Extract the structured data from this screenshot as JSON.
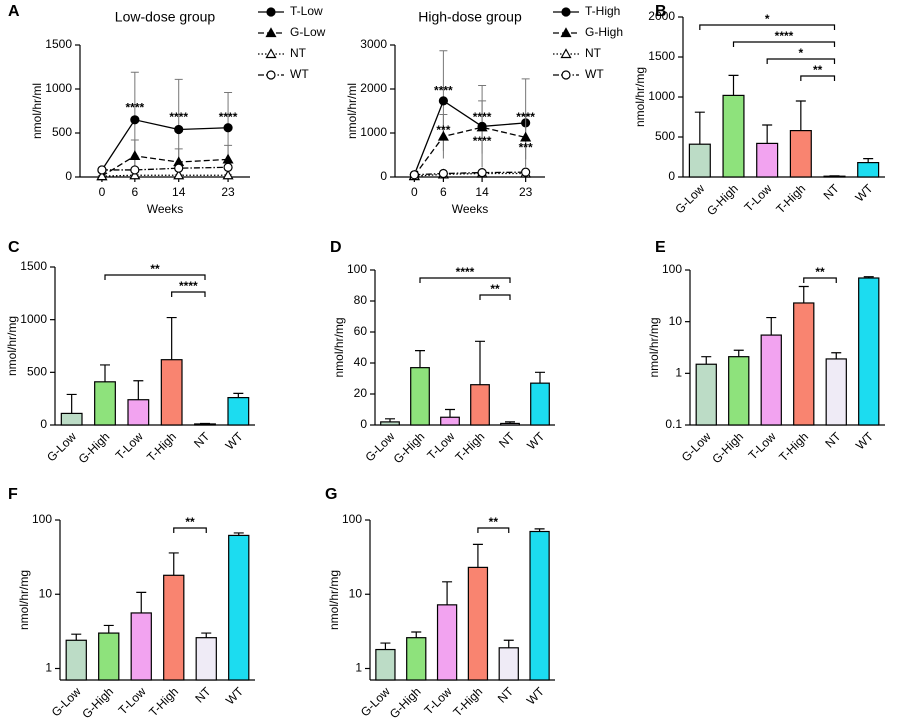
{
  "chart_data": [
    {
      "type": "line",
      "panel": "A",
      "title": "Low-dose group",
      "x_label": "Weeks",
      "y_label": "nmol/hr/ml",
      "x": [
        0,
        6,
        14,
        23
      ],
      "xlim": [
        -4,
        27
      ],
      "xticks": [
        0,
        6,
        14,
        23
      ],
      "ylim": [
        0,
        1500
      ],
      "yticks": [
        0,
        500,
        1000,
        1500
      ],
      "series": [
        {
          "name": "T-Low",
          "color": "#000000",
          "marker": "circle-filled",
          "dash": "solid",
          "values": [
            80,
            650,
            540,
            560
          ],
          "errors": [
            20,
            540,
            570,
            400
          ]
        },
        {
          "name": "G-Low",
          "color": "#000000",
          "marker": "triangle-filled",
          "dash": "dashed",
          "values": [
            10,
            240,
            170,
            200
          ],
          "errors": [
            5,
            180,
            150,
            160
          ]
        },
        {
          "name": "NT",
          "color": "#000000",
          "marker": "triangle-open",
          "dash": "dotted",
          "values": [
            10,
            20,
            20,
            20
          ],
          "errors": [
            3,
            5,
            5,
            5
          ]
        },
        {
          "name": "WT",
          "color": "#000000",
          "marker": "circle-open",
          "dash": "dashdot",
          "values": [
            80,
            80,
            100,
            110
          ],
          "errors": [
            10,
            20,
            20,
            20
          ]
        }
      ],
      "annotations": [
        {
          "text": "****",
          "x": 6,
          "y": 780
        },
        {
          "text": "****",
          "x": 14,
          "y": 670
        },
        {
          "text": "****",
          "x": 23,
          "y": 670
        }
      ]
    },
    {
      "type": "line",
      "title": "High-dose group",
      "x_label": "Weeks",
      "y_label": "nmol/hr/ml",
      "x": [
        0,
        6,
        14,
        23
      ],
      "xlim": [
        -4,
        27
      ],
      "xticks": [
        0,
        6,
        14,
        23
      ],
      "ylim": [
        0,
        3000
      ],
      "yticks": [
        0,
        1000,
        2000,
        3000
      ],
      "series": [
        {
          "name": "T-High",
          "color": "#000000",
          "marker": "circle-filled",
          "dash": "solid",
          "values": [
            50,
            1730,
            1150,
            1230
          ],
          "errors": [
            20,
            1140,
            930,
            1000
          ]
        },
        {
          "name": "G-High",
          "color": "#000000",
          "marker": "triangle-filled",
          "dash": "dashed",
          "values": [
            30,
            920,
            1130,
            900
          ],
          "errors": [
            10,
            500,
            600,
            500
          ]
        },
        {
          "name": "NT",
          "color": "#000000",
          "marker": "triangle-open",
          "dash": "dotted",
          "values": [
            20,
            60,
            80,
            80
          ],
          "errors": [
            5,
            10,
            10,
            10
          ]
        },
        {
          "name": "WT",
          "color": "#000000",
          "marker": "circle-open",
          "dash": "dashdot",
          "values": [
            50,
            80,
            100,
            110
          ],
          "errors": [
            10,
            20,
            20,
            20
          ]
        }
      ],
      "annotations": [
        {
          "text": "****",
          "x": 6,
          "y": 1950
        },
        {
          "text": "***",
          "x": 6,
          "y": 1050
        },
        {
          "text": "****",
          "x": 14,
          "y": 1350
        },
        {
          "text": "****",
          "x": 14,
          "y": 800
        },
        {
          "text": "****",
          "x": 23,
          "y": 1350
        },
        {
          "text": "***",
          "x": 23,
          "y": 650
        }
      ]
    },
    {
      "type": "bar",
      "panel": "B",
      "y_label": "nmol/hr/mg",
      "log": false,
      "categories": [
        "G-Low",
        "G-High",
        "T-Low",
        "T-High",
        "NT",
        "WT"
      ],
      "colors": [
        "#bcdcc6",
        "#8ee27c",
        "#f2a3f0",
        "#f98470",
        "#efebf6",
        "#1cdcf0"
      ],
      "values": [
        410,
        1020,
        420,
        580,
        10,
        180
      ],
      "errors": [
        400,
        250,
        230,
        370,
        5,
        50
      ],
      "ylim": [
        0,
        2000
      ],
      "yticks": [
        0,
        500,
        1000,
        1500,
        2000
      ],
      "brackets": [
        {
          "from": "G-Low",
          "to": "NT",
          "label": "*"
        },
        {
          "from": "G-High",
          "to": "NT",
          "label": "****"
        },
        {
          "from": "T-Low",
          "to": "NT",
          "label": "*"
        },
        {
          "from": "T-High",
          "to": "NT",
          "label": "**"
        }
      ]
    },
    {
      "type": "bar",
      "panel": "C",
      "y_label": "nmol/hr/mg",
      "log": false,
      "categories": [
        "G-Low",
        "G-High",
        "T-Low",
        "T-High",
        "NT",
        "WT"
      ],
      "colors": [
        "#bcdcc6",
        "#8ee27c",
        "#f2a3f0",
        "#f98470",
        "#efebf6",
        "#1cdcf0"
      ],
      "values": [
        110,
        410,
        240,
        620,
        10,
        260
      ],
      "errors": [
        180,
        160,
        180,
        400,
        5,
        40
      ],
      "ylim": [
        0,
        1500
      ],
      "yticks": [
        0,
        500,
        1000,
        1500
      ],
      "brackets": [
        {
          "from": "G-High",
          "to": "NT",
          "label": "**"
        },
        {
          "from": "T-High",
          "to": "NT",
          "label": "****"
        }
      ]
    },
    {
      "type": "bar",
      "panel": "D",
      "y_label": "nmol/hr/mg",
      "log": false,
      "categories": [
        "G-Low",
        "G-High",
        "T-Low",
        "T-High",
        "NT",
        "WT"
      ],
      "colors": [
        "#bcdcc6",
        "#8ee27c",
        "#f2a3f0",
        "#f98470",
        "#efebf6",
        "#1cdcf0"
      ],
      "values": [
        2,
        37,
        5,
        26,
        1,
        27
      ],
      "errors": [
        2,
        11,
        5,
        28,
        1,
        7
      ],
      "ylim": [
        0,
        100
      ],
      "yticks": [
        0,
        20,
        40,
        60,
        80,
        100
      ],
      "brackets": [
        {
          "from": "G-High",
          "to": "NT",
          "label": "****"
        },
        {
          "from": "T-High",
          "to": "NT",
          "label": "**"
        }
      ]
    },
    {
      "type": "bar",
      "panel": "E",
      "y_label": "nmol/hr/mg",
      "log": true,
      "categories": [
        "G-Low",
        "G-High",
        "T-Low",
        "T-High",
        "NT",
        "WT"
      ],
      "colors": [
        "#bcdcc6",
        "#8ee27c",
        "#f2a3f0",
        "#f98470",
        "#efebf6",
        "#1cdcf0"
      ],
      "values": [
        1.5,
        2.1,
        5.5,
        23,
        1.9,
        70
      ],
      "errors": [
        0.6,
        0.7,
        6.5,
        25,
        0.6,
        4
      ],
      "ylim": [
        0.1,
        100
      ],
      "yticks": [
        0.1,
        1,
        10,
        100
      ],
      "brackets": [
        {
          "from": "T-High",
          "to": "NT",
          "label": "**"
        }
      ]
    },
    {
      "type": "bar",
      "panel": "F",
      "y_label": "nmol/hr/mg",
      "log": true,
      "categories": [
        "G-Low",
        "G-High",
        "T-Low",
        "T-High",
        "NT",
        "WT"
      ],
      "colors": [
        "#bcdcc6",
        "#8ee27c",
        "#f2a3f0",
        "#f98470",
        "#efebf6",
        "#1cdcf0"
      ],
      "values": [
        2.4,
        3.0,
        5.6,
        18,
        2.6,
        62
      ],
      "errors": [
        0.5,
        0.8,
        5,
        18,
        0.4,
        5
      ],
      "ylim": [
        0.7,
        100
      ],
      "yticks": [
        1,
        10,
        100
      ],
      "brackets": [
        {
          "from": "T-High",
          "to": "NT",
          "label": "**"
        }
      ]
    },
    {
      "type": "bar",
      "panel": "G",
      "y_label": "nmol/hr/mg",
      "log": true,
      "categories": [
        "G-Low",
        "G-High",
        "T-Low",
        "T-High",
        "NT",
        "WT"
      ],
      "colors": [
        "#bcdcc6",
        "#8ee27c",
        "#f2a3f0",
        "#f98470",
        "#efebf6",
        "#1cdcf0"
      ],
      "values": [
        1.8,
        2.6,
        7.2,
        23,
        1.9,
        70
      ],
      "errors": [
        0.4,
        0.5,
        7.5,
        24,
        0.5,
        6
      ],
      "ylim": [
        0.7,
        100
      ],
      "yticks": [
        1,
        10,
        100
      ],
      "brackets": [
        {
          "from": "T-High",
          "to": "NT",
          "label": "**"
        }
      ]
    }
  ]
}
